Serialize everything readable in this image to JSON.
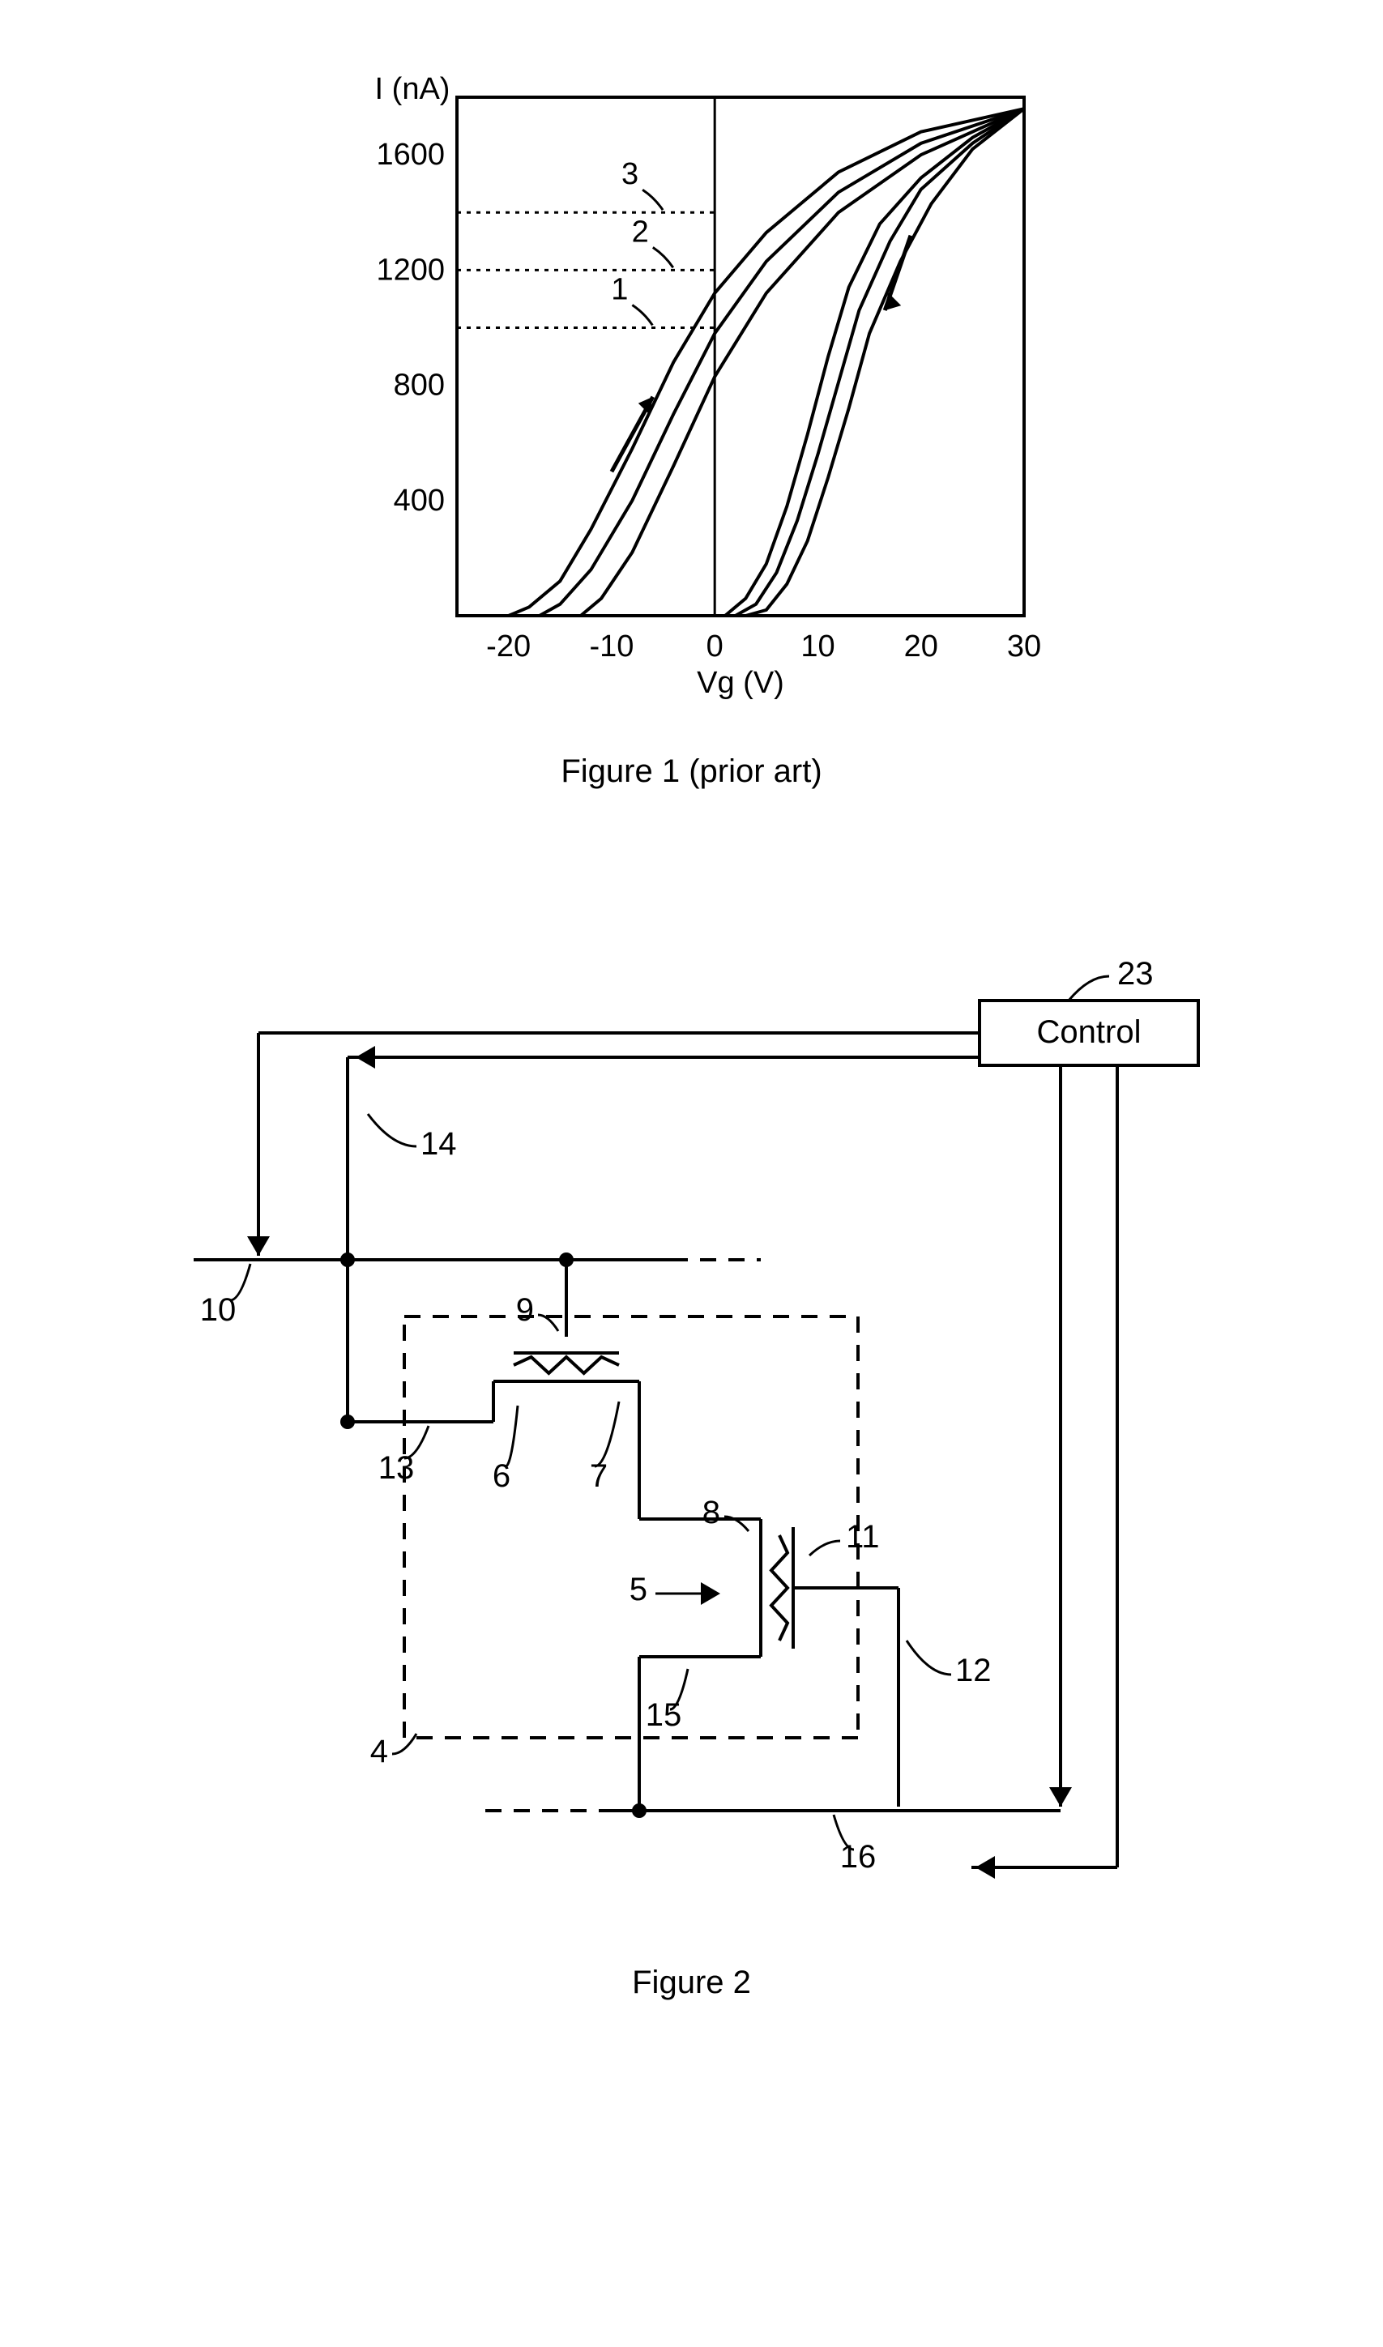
{
  "figure1": {
    "type": "line-chart-hysteresis",
    "y_label": "I (nA)",
    "x_label": "Vg (V)",
    "y_ticks": [
      "1600",
      "1200",
      "800",
      "400"
    ],
    "x_ticks": [
      "-20",
      "-10",
      "0",
      "10",
      "20",
      "30"
    ],
    "x_range": [
      -25,
      30
    ],
    "y_range": [
      0,
      1800
    ],
    "curves_upward": [
      [
        [
          -20,
          0
        ],
        [
          -18,
          30
        ],
        [
          -15,
          120
        ],
        [
          -12,
          300
        ],
        [
          -8,
          580
        ],
        [
          -4,
          880
        ],
        [
          0,
          1120
        ],
        [
          5,
          1330
        ],
        [
          12,
          1540
        ],
        [
          20,
          1680
        ],
        [
          30,
          1760
        ]
      ],
      [
        [
          -17,
          0
        ],
        [
          -15,
          40
        ],
        [
          -12,
          160
        ],
        [
          -8,
          400
        ],
        [
          -4,
          700
        ],
        [
          0,
          980
        ],
        [
          5,
          1230
        ],
        [
          12,
          1470
        ],
        [
          20,
          1640
        ],
        [
          30,
          1760
        ]
      ],
      [
        [
          -13,
          0
        ],
        [
          -11,
          60
        ],
        [
          -8,
          220
        ],
        [
          -4,
          520
        ],
        [
          0,
          830
        ],
        [
          5,
          1120
        ],
        [
          12,
          1400
        ],
        [
          20,
          1600
        ],
        [
          30,
          1760
        ]
      ]
    ],
    "curves_downward": [
      [
        [
          30,
          1760
        ],
        [
          25,
          1660
        ],
        [
          20,
          1520
        ],
        [
          16,
          1360
        ],
        [
          13,
          1140
        ],
        [
          11,
          900
        ],
        [
          9,
          630
        ],
        [
          7,
          380
        ],
        [
          5,
          180
        ],
        [
          3,
          60
        ],
        [
          1,
          0
        ]
      ],
      [
        [
          30,
          1760
        ],
        [
          25,
          1640
        ],
        [
          20,
          1480
        ],
        [
          17,
          1300
        ],
        [
          14,
          1060
        ],
        [
          12,
          810
        ],
        [
          10,
          560
        ],
        [
          8,
          330
        ],
        [
          6,
          150
        ],
        [
          4,
          40
        ],
        [
          2,
          0
        ]
      ],
      [
        [
          30,
          1760
        ],
        [
          25,
          1620
        ],
        [
          21,
          1430
        ],
        [
          18,
          1230
        ],
        [
          15,
          980
        ],
        [
          13,
          720
        ],
        [
          11,
          480
        ],
        [
          9,
          260
        ],
        [
          7,
          110
        ],
        [
          5,
          20
        ],
        [
          3,
          0
        ]
      ]
    ],
    "dotted_lines": [
      {
        "y": 1000,
        "label_x": -8,
        "label": "1"
      },
      {
        "y": 1200,
        "label_x": -6,
        "label": "2"
      },
      {
        "y": 1400,
        "label_x": -7,
        "label": "3"
      }
    ],
    "caption": "Figure 1 (prior art)",
    "axis_color": "#000000",
    "curve_color": "#000000",
    "curve_width": 4,
    "dotted_color": "#000000",
    "background": "#ffffff",
    "font_size": 38
  },
  "figure2": {
    "type": "circuit-diagram",
    "caption": "Figure 2",
    "control_label": "Control",
    "labels": {
      "l23": "23",
      "l14": "14",
      "l10": "10",
      "l9": "9",
      "l13": "13",
      "l6": "6",
      "l7": "7",
      "l8": "8",
      "l11": "11",
      "l5": "5",
      "l12": "12",
      "l4": "4",
      "l15": "15",
      "l16": "16"
    },
    "line_color": "#000000",
    "line_width": 4,
    "dash_pattern": "20 15",
    "font_size": 40,
    "background": "#ffffff"
  }
}
